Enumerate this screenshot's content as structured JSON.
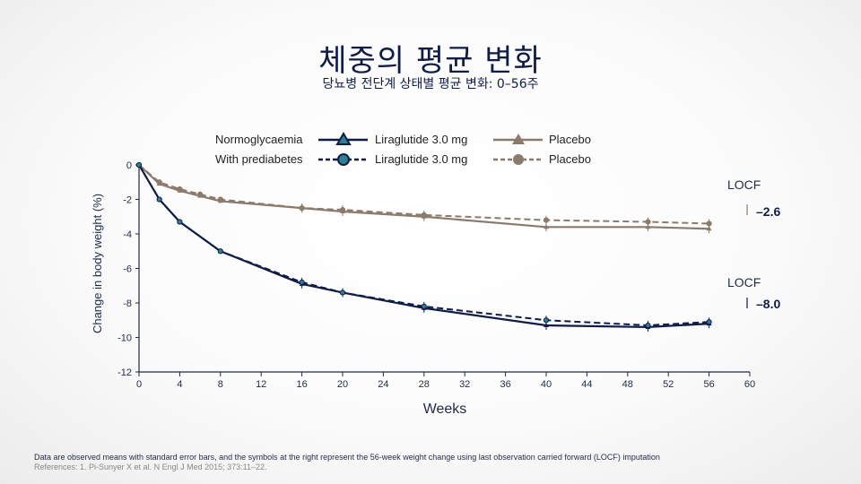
{
  "header": {
    "title": "체중의 평균 변화",
    "subtitle": "당뇨병 전단계 상태별 평균 변화: 0–56주"
  },
  "legend": {
    "row1": {
      "group": "Normoglycaemia",
      "series_a": "Liraglutide 3.0 mg",
      "series_b": "Placebo"
    },
    "row2": {
      "group": "With prediabetes",
      "series_a": "Liraglutide 3.0 mg",
      "series_b": "Placebo"
    }
  },
  "annotations": {
    "locf_upper": "LOCF",
    "locf_lower": "LOCF",
    "placebo_end": "–2.6",
    "liraglutide_end": "–8.0"
  },
  "footnote": {
    "text": "Data are observed means with standard error bars, and the symbols at the right represent the 56-week weight change using last observation carried forward (LOCF) imputation",
    "references": "References: 1. Pi-Sunyer X et al. N Engl J Med 2015; 373:11–22."
  },
  "colors": {
    "placebo": "#8a7b6c",
    "liraglutide": "#0f1c46",
    "marker_fill_liraglutide": "#2e7f92"
  },
  "chart_data": {
    "type": "line",
    "xlabel": "Weeks",
    "ylabel": "Change in body weight (%)",
    "xlim": [
      0,
      60
    ],
    "ylim": [
      -12,
      0
    ],
    "xticks": [
      0,
      4,
      8,
      12,
      16,
      20,
      24,
      28,
      32,
      36,
      40,
      44,
      48,
      52,
      56,
      60
    ],
    "yticks": [
      0,
      -2,
      -4,
      -6,
      -8,
      -10,
      -12
    ],
    "series": [
      {
        "name": "Placebo (Normoglycaemia)",
        "color": "#8a7b6c",
        "style": "solid",
        "marker": "triangle",
        "x": [
          0,
          2,
          4,
          6,
          8,
          16,
          20,
          28,
          40,
          50,
          56
        ],
        "y": [
          0,
          -1.1,
          -1.5,
          -1.8,
          -2.1,
          -2.5,
          -2.7,
          -3.0,
          -3.6,
          -3.6,
          -3.7
        ]
      },
      {
        "name": "Placebo (With prediabetes)",
        "color": "#8a7b6c",
        "style": "dashed",
        "marker": "circle",
        "x": [
          0,
          2,
          4,
          6,
          8,
          16,
          20,
          28,
          40,
          50,
          56
        ],
        "y": [
          0,
          -1.0,
          -1.4,
          -1.7,
          -2.0,
          -2.5,
          -2.6,
          -2.9,
          -3.2,
          -3.3,
          -3.4
        ]
      },
      {
        "name": "Liraglutide 3.0 mg (Normoglycaemia)",
        "color": "#0f1c46",
        "style": "solid",
        "marker": "triangle",
        "x": [
          0,
          2,
          4,
          8,
          16,
          20,
          28,
          40,
          50,
          56
        ],
        "y": [
          0,
          -2.0,
          -3.3,
          -5.0,
          -6.9,
          -7.4,
          -8.3,
          -9.3,
          -9.4,
          -9.2
        ]
      },
      {
        "name": "Liraglutide 3.0 mg (With prediabetes)",
        "color": "#0f1c46",
        "style": "dashed",
        "marker": "circle",
        "x": [
          0,
          2,
          4,
          8,
          16,
          20,
          28,
          40,
          50,
          56
        ],
        "y": [
          0,
          -2.0,
          -3.3,
          -5.0,
          -6.8,
          -7.4,
          -8.2,
          -9.0,
          -9.3,
          -9.1
        ]
      }
    ],
    "locf": [
      {
        "label": "LOCF",
        "value": -2.6
      },
      {
        "label": "LOCF",
        "value": -8.0
      }
    ]
  }
}
